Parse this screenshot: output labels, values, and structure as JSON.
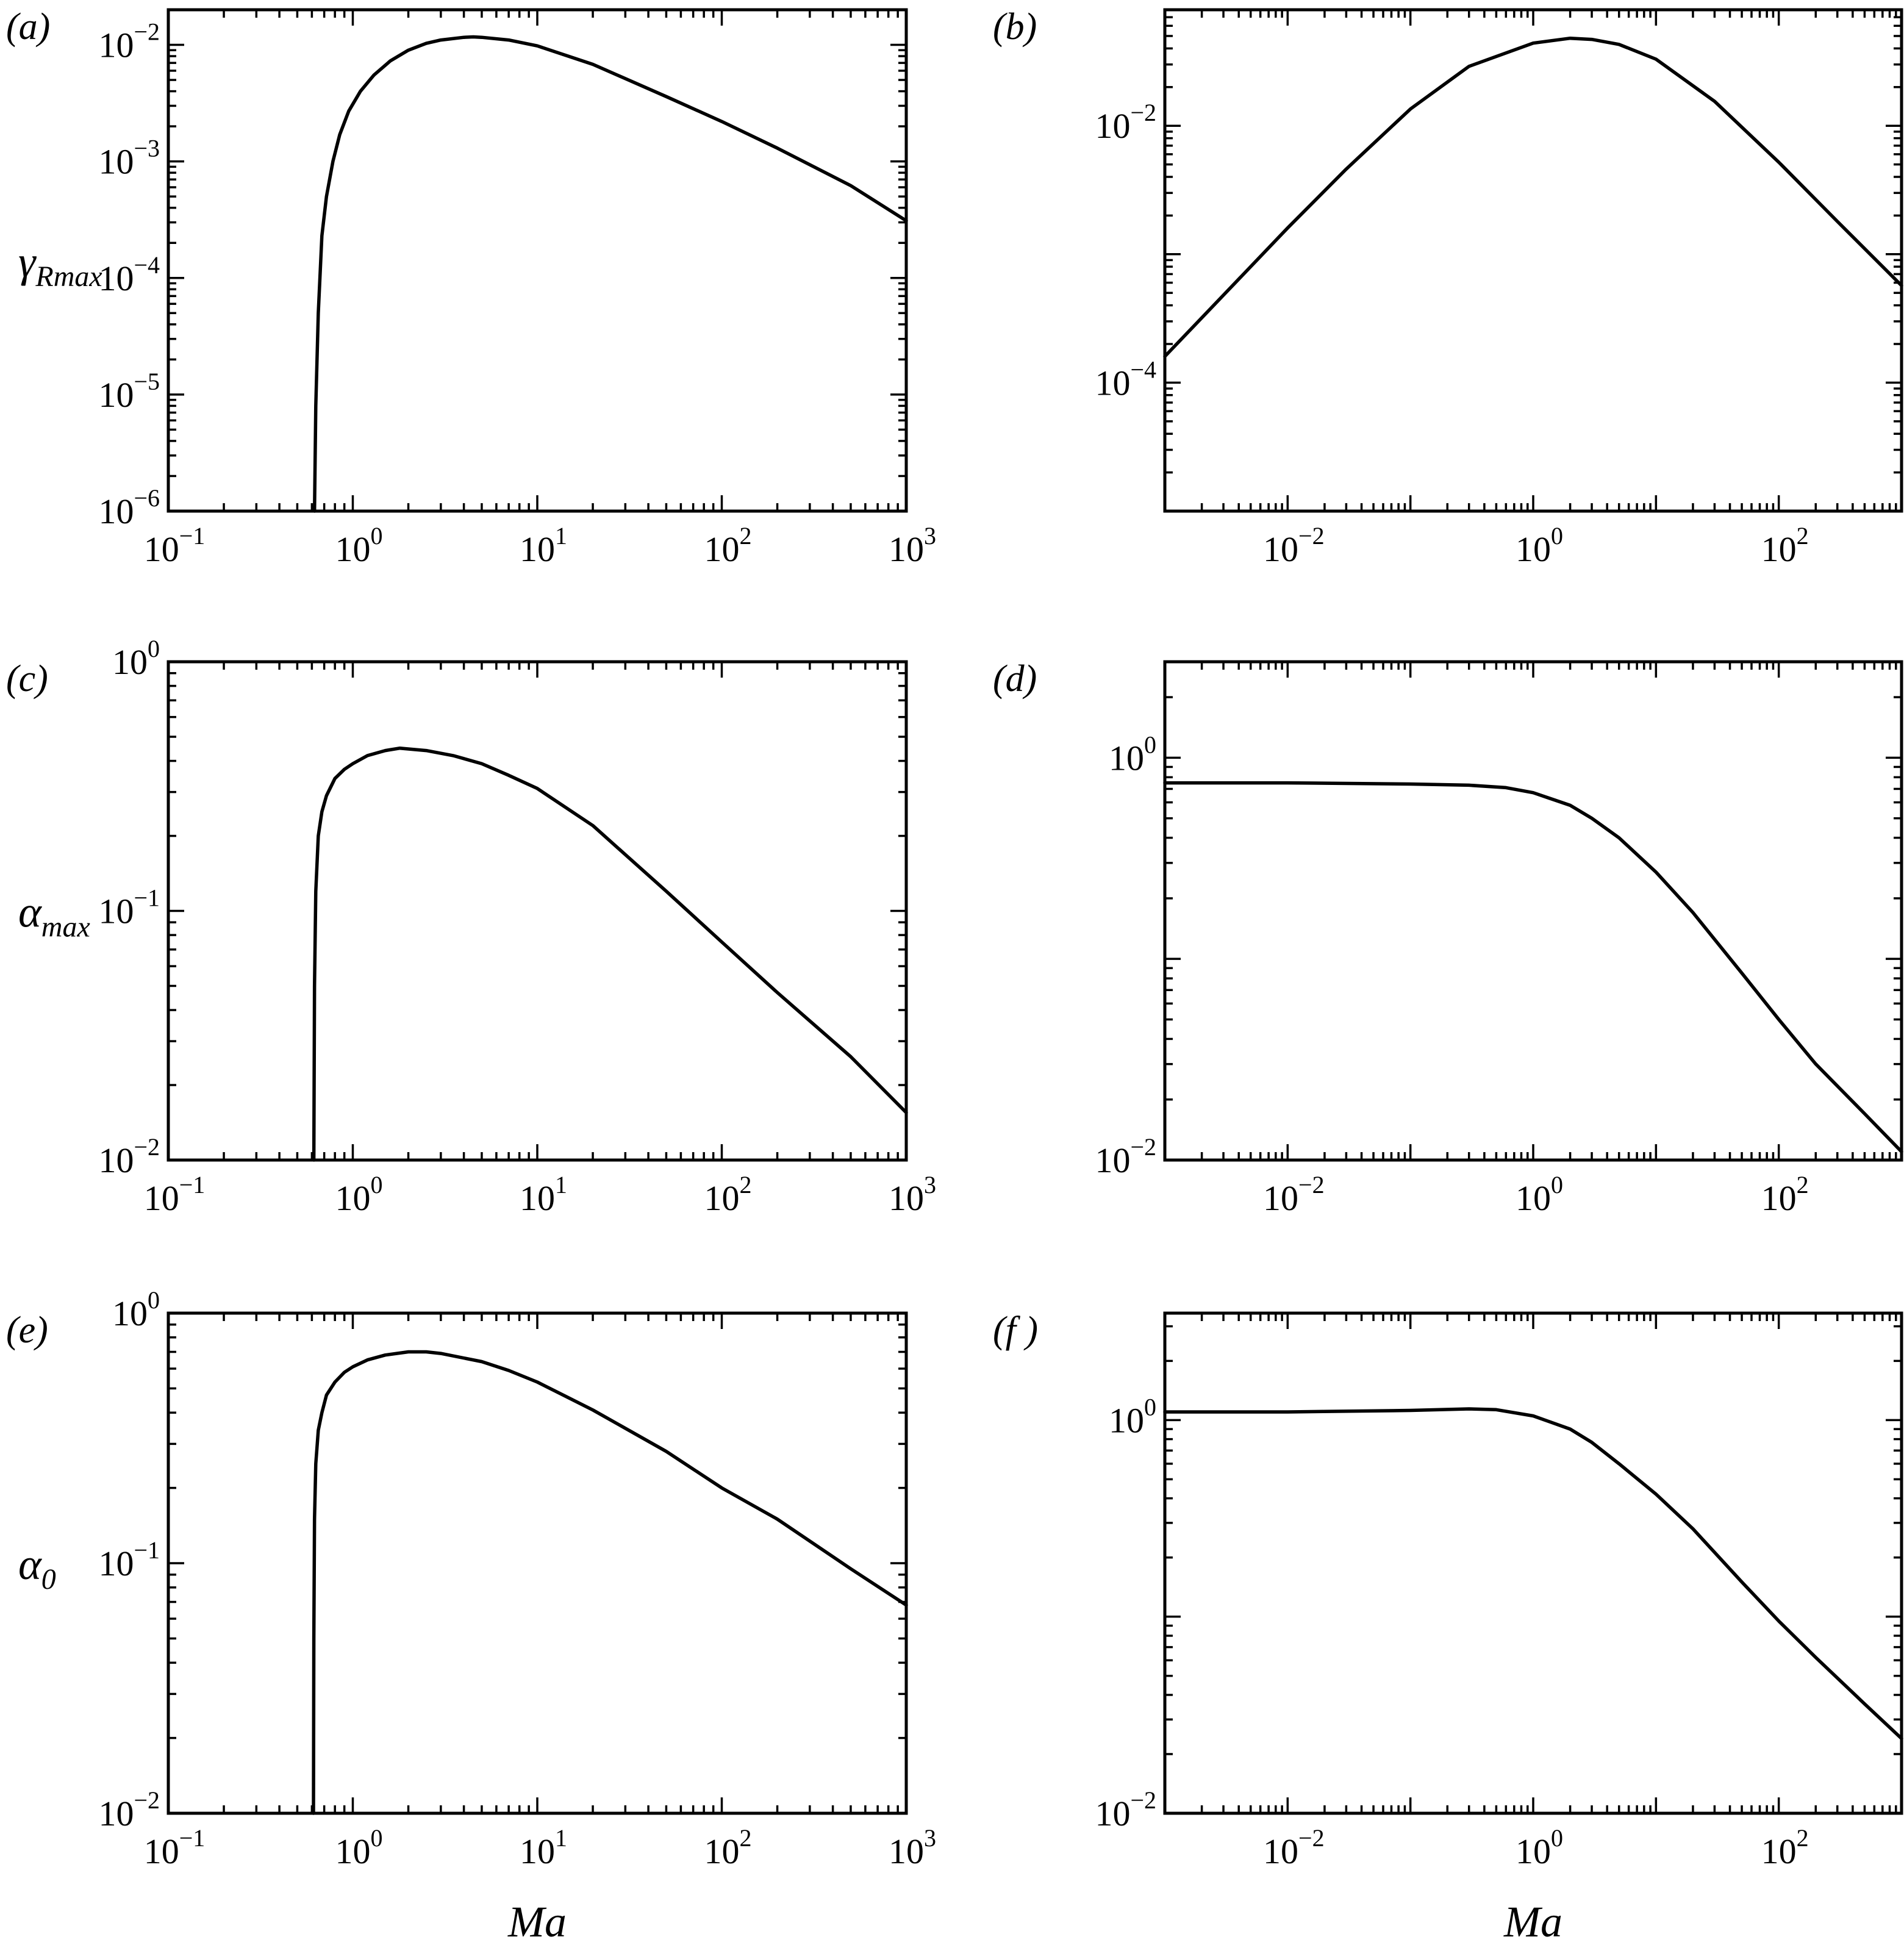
{
  "chart_data": [
    {
      "panel_label": "(a)",
      "type": "line",
      "xscale": "log",
      "yscale": "log",
      "xlim": [
        0.1,
        1000
      ],
      "ylim": [
        1e-06,
        0.02
      ],
      "xticks": [
        {
          "base": "10",
          "exp": "−1",
          "v": 0.1
        },
        {
          "base": "10",
          "exp": "0",
          "v": 1
        },
        {
          "base": "10",
          "exp": "1",
          "v": 10
        },
        {
          "base": "10",
          "exp": "2",
          "v": 100
        },
        {
          "base": "10",
          "exp": "3",
          "v": 1000
        }
      ],
      "yticks": [
        {
          "base": "10",
          "exp": "−6",
          "v": 1e-06
        },
        {
          "base": "10",
          "exp": "−5",
          "v": 1e-05
        },
        {
          "base": "10",
          "exp": "−4",
          "v": 0.0001
        },
        {
          "base": "10",
          "exp": "−3",
          "v": 0.001
        },
        {
          "base": "10",
          "exp": "−2",
          "v": 0.01
        }
      ],
      "xlabel": "",
      "ylabel": {
        "main": "γ",
        "sub": "Rmax"
      },
      "series": [
        {
          "x": [
            0.62,
            0.63,
            0.65,
            0.68,
            0.72,
            0.78,
            0.85,
            0.95,
            1.1,
            1.3,
            1.6,
            2,
            2.5,
            3,
            4,
            4.5,
            5,
            7,
            10,
            20,
            50,
            100,
            200,
            500,
            1000
          ],
          "y": [
            1e-06,
            8e-06,
            5e-05,
            0.00023,
            0.0005,
            0.001,
            0.0017,
            0.0027,
            0.004,
            0.0055,
            0.0073,
            0.009,
            0.0103,
            0.011,
            0.0116,
            0.0117,
            0.0116,
            0.011,
            0.0098,
            0.0068,
            0.0036,
            0.0022,
            0.0013,
            0.00062,
            0.00031
          ]
        }
      ]
    },
    {
      "panel_label": "(b)",
      "type": "line",
      "xscale": "log",
      "yscale": "log",
      "xlim": [
        0.001,
        1000
      ],
      "ylim": [
        1e-05,
        0.08
      ],
      "xticks": [
        {
          "base": "10",
          "exp": "−2",
          "v": 0.01
        },
        {
          "base": "10",
          "exp": "0",
          "v": 1
        },
        {
          "base": "10",
          "exp": "2",
          "v": 100
        }
      ],
      "yticks": [
        {
          "base": "10",
          "exp": "−4",
          "v": 0.0001
        },
        {
          "base": "10",
          "exp": "−2",
          "v": 0.01
        }
      ],
      "xlabel": "",
      "ylabel": null,
      "series": [
        {
          "x": [
            0.001,
            0.003,
            0.01,
            0.03,
            0.1,
            0.3,
            1,
            2,
            3,
            5,
            10,
            30,
            100,
            300,
            1000
          ],
          "y": [
            0.00016,
            0.00048,
            0.0016,
            0.0046,
            0.0135,
            0.029,
            0.044,
            0.048,
            0.047,
            0.043,
            0.033,
            0.0155,
            0.0052,
            0.0018,
            0.00057
          ]
        }
      ]
    },
    {
      "panel_label": "(c)",
      "type": "line",
      "xscale": "log",
      "yscale": "log",
      "xlim": [
        0.1,
        1000
      ],
      "ylim": [
        0.01,
        1
      ],
      "xticks": [
        {
          "base": "10",
          "exp": "−1",
          "v": 0.1
        },
        {
          "base": "10",
          "exp": "0",
          "v": 1
        },
        {
          "base": "10",
          "exp": "1",
          "v": 10
        },
        {
          "base": "10",
          "exp": "2",
          "v": 100
        },
        {
          "base": "10",
          "exp": "3",
          "v": 1000
        }
      ],
      "yticks": [
        {
          "base": "10",
          "exp": "−2",
          "v": 0.01
        },
        {
          "base": "10",
          "exp": "−1",
          "v": 0.1
        },
        {
          "base": "10",
          "exp": "0",
          "v": 1
        }
      ],
      "xlabel": "",
      "ylabel": {
        "main": "α",
        "sub": "max"
      },
      "series": [
        {
          "x": [
            0.615,
            0.62,
            0.63,
            0.65,
            0.68,
            0.72,
            0.8,
            0.9,
            1,
            1.2,
            1.5,
            1.8,
            2.5,
            3.5,
            5,
            7,
            10,
            20,
            50,
            100,
            200,
            500,
            1000
          ],
          "y": [
            0.01,
            0.05,
            0.12,
            0.2,
            0.25,
            0.29,
            0.34,
            0.37,
            0.39,
            0.42,
            0.44,
            0.45,
            0.44,
            0.42,
            0.39,
            0.35,
            0.31,
            0.22,
            0.12,
            0.075,
            0.047,
            0.026,
            0.0155
          ]
        }
      ]
    },
    {
      "panel_label": "(d)",
      "type": "line",
      "xscale": "log",
      "yscale": "log",
      "xlim": [
        0.001,
        1000
      ],
      "ylim": [
        0.01,
        3
      ],
      "xticks": [
        {
          "base": "10",
          "exp": "−2",
          "v": 0.01
        },
        {
          "base": "10",
          "exp": "0",
          "v": 1
        },
        {
          "base": "10",
          "exp": "2",
          "v": 100
        }
      ],
      "yticks": [
        {
          "base": "10",
          "exp": "−2",
          "v": 0.01
        },
        {
          "base": "10",
          "exp": "0",
          "v": 1
        }
      ],
      "xlabel": "",
      "ylabel": null,
      "series": [
        {
          "x": [
            0.001,
            0.01,
            0.1,
            0.3,
            0.6,
            1,
            2,
            3,
            5,
            10,
            20,
            50,
            100,
            200,
            500,
            1000
          ],
          "y": [
            0.75,
            0.75,
            0.74,
            0.73,
            0.71,
            0.67,
            0.58,
            0.5,
            0.4,
            0.27,
            0.17,
            0.085,
            0.05,
            0.03,
            0.017,
            0.011
          ]
        }
      ]
    },
    {
      "panel_label": "(e)",
      "type": "line",
      "xscale": "log",
      "yscale": "log",
      "xlim": [
        0.1,
        1000
      ],
      "ylim": [
        0.01,
        1
      ],
      "xticks": [
        {
          "base": "10",
          "exp": "−1",
          "v": 0.1
        },
        {
          "base": "10",
          "exp": "0",
          "v": 1
        },
        {
          "base": "10",
          "exp": "1",
          "v": 10
        },
        {
          "base": "10",
          "exp": "2",
          "v": 100
        },
        {
          "base": "10",
          "exp": "3",
          "v": 1000
        }
      ],
      "yticks": [
        {
          "base": "10",
          "exp": "−2",
          "v": 0.01
        },
        {
          "base": "10",
          "exp": "−1",
          "v": 0.1
        },
        {
          "base": "10",
          "exp": "0",
          "v": 1
        }
      ],
      "xlabel": "Ma",
      "ylabel": {
        "main": "α",
        "sub": "0"
      },
      "series": [
        {
          "x": [
            0.612,
            0.615,
            0.62,
            0.63,
            0.65,
            0.68,
            0.72,
            0.8,
            0.9,
            1,
            1.2,
            1.5,
            2,
            2.5,
            3,
            5,
            7,
            10,
            20,
            50,
            100,
            200,
            500,
            1000
          ],
          "y": [
            0.01,
            0.05,
            0.15,
            0.25,
            0.34,
            0.4,
            0.47,
            0.53,
            0.58,
            0.61,
            0.65,
            0.68,
            0.7,
            0.7,
            0.69,
            0.64,
            0.59,
            0.53,
            0.41,
            0.28,
            0.2,
            0.15,
            0.095,
            0.068
          ]
        }
      ]
    },
    {
      "panel_label": "(f )",
      "type": "line",
      "xscale": "log",
      "yscale": "log",
      "xlim": [
        0.001,
        1000
      ],
      "ylim": [
        0.01,
        3.5
      ],
      "xticks": [
        {
          "base": "10",
          "exp": "−2",
          "v": 0.01
        },
        {
          "base": "10",
          "exp": "0",
          "v": 1
        },
        {
          "base": "10",
          "exp": "2",
          "v": 100
        }
      ],
      "yticks": [
        {
          "base": "10",
          "exp": "−2",
          "v": 0.01
        },
        {
          "base": "10",
          "exp": "0",
          "v": 1
        }
      ],
      "xlabel": "Ma",
      "ylabel": null,
      "series": [
        {
          "x": [
            0.001,
            0.01,
            0.1,
            0.3,
            0.5,
            1,
            2,
            3,
            5,
            10,
            20,
            50,
            100,
            200,
            500,
            1000
          ],
          "y": [
            1.1,
            1.1,
            1.12,
            1.14,
            1.13,
            1.05,
            0.9,
            0.77,
            0.6,
            0.42,
            0.28,
            0.15,
            0.095,
            0.062,
            0.036,
            0.024
          ]
        }
      ]
    }
  ]
}
